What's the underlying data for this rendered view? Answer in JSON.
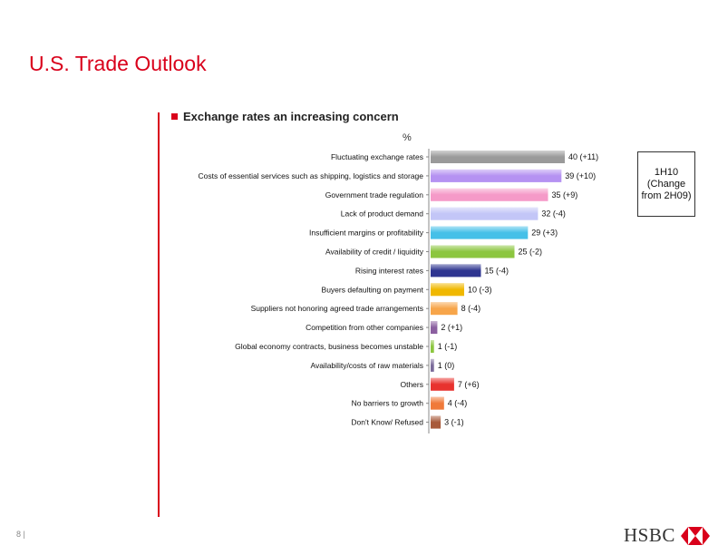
{
  "page": {
    "title": "U.S. Trade Outlook",
    "page_number": "8 |",
    "logo_text": "HSBC",
    "accent_color": "#d9001b"
  },
  "chart_data": {
    "type": "bar",
    "orientation": "horizontal",
    "title": "Exchange rates an increasing concern",
    "unit_label": "%",
    "legend_note": "1H10 (Change from 2H09)",
    "xlim": [
      0,
      42
    ],
    "grid": false,
    "categories": [
      "Fluctuating exchange rates",
      "Costs of essential services such as shipping, logistics and storage",
      "Government trade regulation",
      "Lack of product demand",
      "Insufficient margins or profitability",
      "Availability of credit / liquidity",
      "Rising interest rates",
      "Buyers defaulting on payment",
      "Suppliers not honoring agreed trade arrangements",
      "Competition from other companies",
      "Global economy contracts, business becomes unstable",
      "Availability/costs of raw materials",
      "Others",
      "No barriers to growth",
      "Don't Know/ Refused"
    ],
    "values": [
      40,
      39,
      35,
      32,
      29,
      25,
      15,
      10,
      8,
      2,
      1,
      1,
      7,
      4,
      3
    ],
    "changes": [
      "+11",
      "+10",
      "+9",
      "-4",
      "+3",
      "-2",
      "-4",
      "-3",
      "-4",
      "+1",
      "-1",
      "0",
      "+6",
      "-4",
      "-1"
    ],
    "value_labels": [
      "40 (+11)",
      "39 (+10)",
      "35 (+9)",
      "32 (-4)",
      "29 (+3)",
      "25 (-2)",
      "15 (-4)",
      "10 (-3)",
      "8 (-4)",
      "2 (+1)",
      "1 (-1)",
      "1 (0)",
      "7 (+6)",
      "4 (-4)",
      "3 (-1)"
    ],
    "colors": [
      "#9a9a9a",
      "#b592f2",
      "#f59ac8",
      "#c3c6f7",
      "#45c0e8",
      "#8cc63f",
      "#2e3590",
      "#f0b800",
      "#f7a54a",
      "#8b5fa0",
      "#8cc63f",
      "#7a6a9a",
      "#e8322e",
      "#f07a3a",
      "#a85a3a"
    ]
  }
}
